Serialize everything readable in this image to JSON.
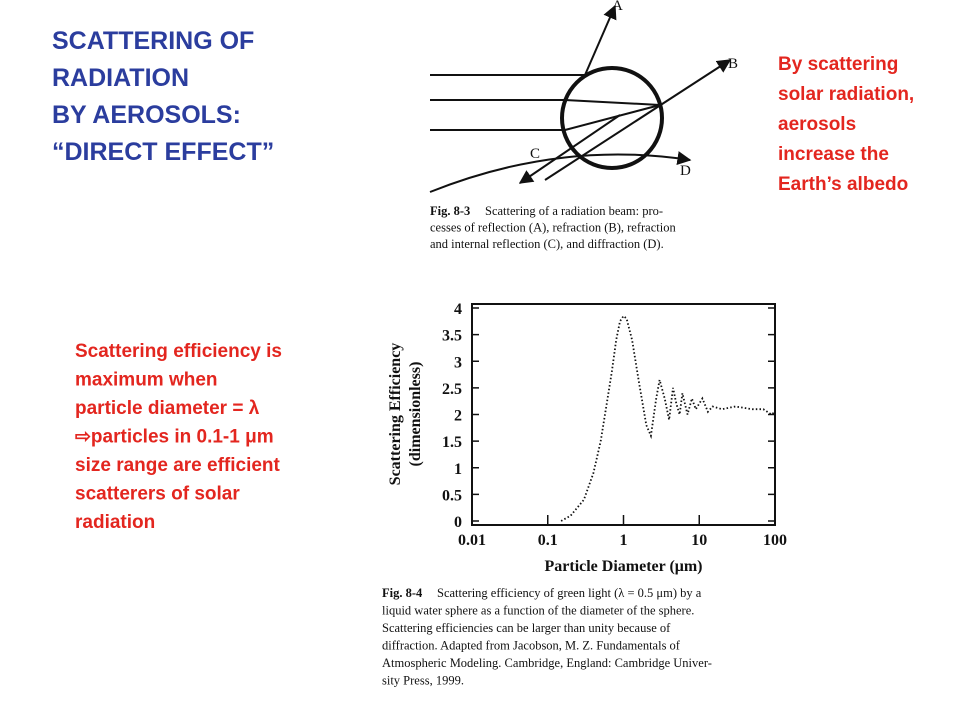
{
  "title": [
    "SCATTERING OF",
    "RADIATION",
    "BY AEROSOLS:",
    "“DIRECT EFFECT”"
  ],
  "note_right": [
    "By scattering",
    "solar radiation,",
    "aerosols",
    "increase the",
    "Earth’s albedo"
  ],
  "note_left": [
    "Scattering efficiency is",
    "maximum when",
    "particle diameter = λ",
    "⇨particles in 0.1-1 μm",
    "size range are efficient",
    "scatterers of solar",
    "radiation"
  ],
  "figure_1": {
    "labels": [
      "A",
      "B",
      "C",
      "D"
    ],
    "caption_label": "Fig. 8-3",
    "caption": [
      "Scattering of a radiation beam: pro-",
      "cesses of reflection (A), refraction (B), refraction",
      "and internal reflection (C), and diffraction (D)."
    ]
  },
  "chart_data": {
    "type": "line",
    "ylabel": [
      "Scattering Efficiency",
      "(dimensionless)"
    ],
    "xlabel": "Particle Diameter (μm)",
    "log_x": true,
    "color": "#111111",
    "x": [
      0.15,
      0.2,
      0.3,
      0.4,
      0.5,
      0.6,
      0.7,
      0.8,
      0.9,
      1.0,
      1.1,
      1.3,
      1.6,
      2.0,
      2.3,
      2.7,
      3.0,
      3.5,
      4,
      4.5,
      5,
      5.5,
      6,
      7,
      8,
      9,
      11,
      13,
      15,
      20,
      30,
      50,
      70,
      90,
      100
    ],
    "values": [
      0,
      0.1,
      0.4,
      0.9,
      1.5,
      2.2,
      2.8,
      3.4,
      3.75,
      3.85,
      3.8,
      3.4,
      2.6,
      1.8,
      1.6,
      2.3,
      2.65,
      2.3,
      1.9,
      2.5,
      2.2,
      2.0,
      2.4,
      2.0,
      2.3,
      2.1,
      2.3,
      2.05,
      2.15,
      2.1,
      2.15,
      2.1,
      2.1,
      2.0,
      2.05
    ],
    "xlim": [
      0.01,
      100
    ],
    "xticks": [
      0.01,
      0.1,
      1,
      10,
      100
    ],
    "ylim": [
      0,
      4
    ],
    "yticks": [
      0,
      0.5,
      1,
      1.5,
      2,
      2.5,
      3,
      3.5,
      4
    ],
    "caption_label": "Fig. 8-4",
    "caption": [
      "Scattering efficiency of green light (λ = 0.5 μm) by a",
      "liquid water sphere as a function of the diameter of the sphere.",
      "Scattering efficiencies can be larger than unity because of",
      "diffraction. Adapted from Jacobson, M. Z. Fundamentals of",
      "Atmospheric Modeling. Cambridge, England: Cambridge Univer-",
      "sity Press, 1999."
    ]
  }
}
